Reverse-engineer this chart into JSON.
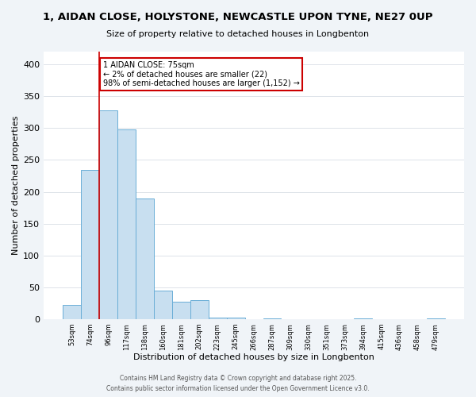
{
  "title": "1, AIDAN CLOSE, HOLYSTONE, NEWCASTLE UPON TYNE, NE27 0UP",
  "subtitle": "Size of property relative to detached houses in Longbenton",
  "xlabel": "Distribution of detached houses by size in Longbenton",
  "ylabel": "Number of detached properties",
  "bar_color": "#c8dff0",
  "bar_edge_color": "#6aaed6",
  "categories": [
    "53sqm",
    "74sqm",
    "96sqm",
    "117sqm",
    "138sqm",
    "160sqm",
    "181sqm",
    "202sqm",
    "223sqm",
    "245sqm",
    "266sqm",
    "287sqm",
    "309sqm",
    "330sqm",
    "351sqm",
    "373sqm",
    "394sqm",
    "415sqm",
    "436sqm",
    "458sqm",
    "479sqm"
  ],
  "values": [
    22,
    234,
    328,
    298,
    190,
    45,
    28,
    30,
    3,
    2,
    0,
    1,
    0,
    0,
    0,
    0,
    1,
    0,
    0,
    0,
    1
  ],
  "ylim": [
    0,
    420
  ],
  "yticks": [
    0,
    50,
    100,
    150,
    200,
    250,
    300,
    350,
    400
  ],
  "property_line_x": 1.5,
  "annotation_line1": "1 AIDAN CLOSE: 75sqm",
  "annotation_line2": "← 2% of detached houses are smaller (22)",
  "annotation_line3": "98% of semi-detached houses are larger (1,152) →",
  "red_line_color": "#cc0000",
  "annotation_box_edge": "#cc0000",
  "footer_line1": "Contains HM Land Registry data © Crown copyright and database right 2025.",
  "footer_line2": "Contains public sector information licensed under the Open Government Licence v3.0.",
  "bg_color": "#f0f4f8",
  "plot_bg_color": "#ffffff"
}
